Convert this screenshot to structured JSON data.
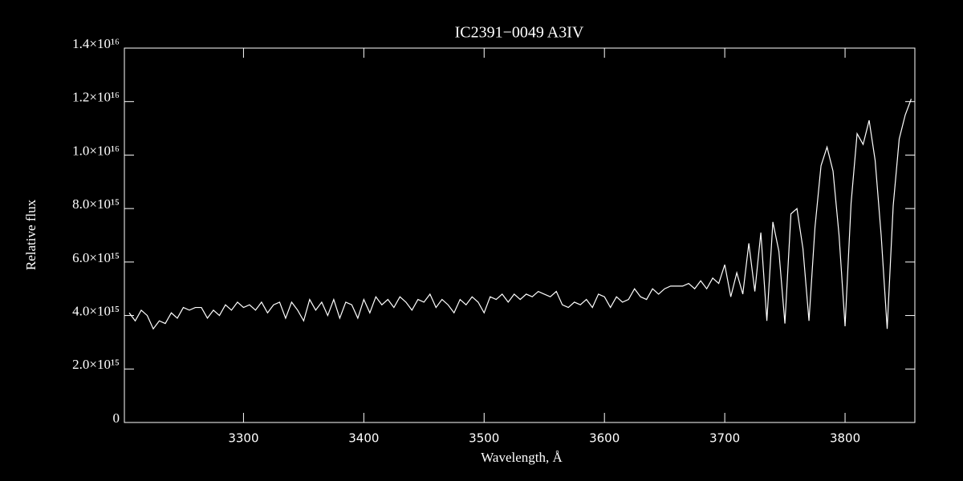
{
  "chart_data": {
    "type": "line",
    "title": "IC2391−0049   A3IV",
    "x_label": "Wavelength, Å",
    "y_label": "Relative flux",
    "color": "#ffffff",
    "xlim": [
      3201,
      3858
    ],
    "xticks": [
      3300,
      3400,
      3500,
      3600,
      3700,
      3800
    ],
    "ylim": [
      0,
      1.4e+16
    ],
    "yticks": [
      0,
      {
        "value": 2000000000000000.0,
        "label": "2.0×10¹⁵"
      },
      {
        "value": 4000000000000000.0,
        "label": "4.0×10¹⁵"
      },
      {
        "value": 6000000000000000.0,
        "label": "6.0×10¹⁵"
      },
      {
        "value": 8000000000000000.0,
        "label": "8.0×10¹⁵"
      },
      {
        "value": 1e+16,
        "label": "1.0×10¹⁶"
      },
      {
        "value": 1.2e+16,
        "label": "1.2×10¹⁶"
      },
      {
        "value": 1.4e+16,
        "label": "1.4×10¹⁶"
      }
    ],
    "x": [
      3205,
      3210,
      3215,
      3220,
      3225,
      3230,
      3235,
      3240,
      3245,
      3250,
      3255,
      3260,
      3265,
      3270,
      3275,
      3280,
      3285,
      3290,
      3295,
      3300,
      3305,
      3310,
      3315,
      3320,
      3325,
      3330,
      3335,
      3340,
      3345,
      3350,
      3355,
      3360,
      3365,
      3370,
      3375,
      3380,
      3385,
      3390,
      3395,
      3400,
      3405,
      3410,
      3415,
      3420,
      3425,
      3430,
      3435,
      3440,
      3445,
      3450,
      3455,
      3460,
      3465,
      3470,
      3475,
      3480,
      3485,
      3490,
      3495,
      3500,
      3505,
      3510,
      3515,
      3520,
      3525,
      3530,
      3535,
      3540,
      3545,
      3550,
      3555,
      3560,
      3565,
      3570,
      3575,
      3580,
      3585,
      3590,
      3595,
      3600,
      3605,
      3610,
      3615,
      3620,
      3625,
      3630,
      3635,
      3640,
      3645,
      3650,
      3655,
      3660,
      3665,
      3670,
      3675,
      3680,
      3685,
      3690,
      3695,
      3700,
      3705,
      3710,
      3715,
      3720,
      3725,
      3730,
      3735,
      3740,
      3745,
      3750,
      3755,
      3760,
      3765,
      3770,
      3775,
      3780,
      3785,
      3790,
      3795,
      3800,
      3805,
      3810,
      3815,
      3820,
      3825,
      3830,
      3835,
      3840,
      3845,
      3850,
      3855
    ],
    "values": [
      4100000000000000.0,
      3800000000000000.0,
      4200000000000000.0,
      4000000000000000.0,
      3500000000000000.0,
      3800000000000000.0,
      3700000000000000.0,
      4100000000000000.0,
      3900000000000000.0,
      4300000000000000.0,
      4200000000000000.0,
      4300000000000000.0,
      4300000000000000.0,
      3900000000000000.0,
      4200000000000000.0,
      4000000000000000.0,
      4400000000000000.0,
      4200000000000000.0,
      4500000000000000.0,
      4300000000000000.0,
      4400000000000000.0,
      4200000000000000.0,
      4500000000000000.0,
      4100000000000000.0,
      4400000000000000.0,
      4500000000000000.0,
      3900000000000000.0,
      4500000000000000.0,
      4200000000000000.0,
      3800000000000000.0,
      4600000000000000.0,
      4200000000000000.0,
      4500000000000000.0,
      4000000000000000.0,
      4600000000000000.0,
      3900000000000000.0,
      4500000000000000.0,
      4400000000000000.0,
      3900000000000000.0,
      4600000000000000.0,
      4100000000000000.0,
      4700000000000000.0,
      4400000000000000.0,
      4600000000000000.0,
      4300000000000000.0,
      4700000000000000.0,
      4500000000000000.0,
      4200000000000000.0,
      4600000000000000.0,
      4500000000000000.0,
      4800000000000000.0,
      4300000000000000.0,
      4600000000000000.0,
      4400000000000000.0,
      4100000000000000.0,
      4600000000000000.0,
      4400000000000000.0,
      4700000000000000.0,
      4500000000000000.0,
      4100000000000000.0,
      4700000000000000.0,
      4600000000000000.0,
      4800000000000000.0,
      4500000000000000.0,
      4800000000000000.0,
      4600000000000000.0,
      4800000000000000.0,
      4700000000000000.0,
      4900000000000000.0,
      4800000000000000.0,
      4700000000000000.0,
      4900000000000000.0,
      4400000000000000.0,
      4300000000000000.0,
      4500000000000000.0,
      4400000000000000.0,
      4600000000000000.0,
      4300000000000000.0,
      4800000000000000.0,
      4700000000000000.0,
      4300000000000000.0,
      4700000000000000.0,
      4500000000000000.0,
      4600000000000000.0,
      5000000000000000.0,
      4700000000000000.0,
      4600000000000000.0,
      5000000000000000.0,
      4800000000000000.0,
      5000000000000000.0,
      5100000000000000.0,
      5100000000000000.0,
      5100000000000000.0,
      5200000000000000.0,
      5000000000000000.0,
      5300000000000000.0,
      5000000000000000.0,
      5400000000000000.0,
      5200000000000000.0,
      5900000000000000.0,
      4700000000000000.0,
      5600000000000000.0,
      4800000000000000.0,
      6700000000000000.0,
      4900000000000000.0,
      7100000000000000.0,
      3800000000000000.0,
      7500000000000000.0,
      6400000000000000.0,
      3700000000000000.0,
      7800000000000000.0,
      8000000000000000.0,
      6500000000000000.0,
      3800000000000000.0,
      7300000000000000.0,
      9600000000000000.0,
      1.03e+16,
      9400000000000000.0,
      7000000000000000.0,
      3600000000000000.0,
      8200000000000000.0,
      1.08e+16,
      1.04e+16,
      1.13e+16,
      9800000000000000.0,
      7000000000000000.0,
      3500000000000000.0,
      8100000000000000.0,
      1.06e+16,
      1.15e+16,
      1.21e+16
    ]
  }
}
